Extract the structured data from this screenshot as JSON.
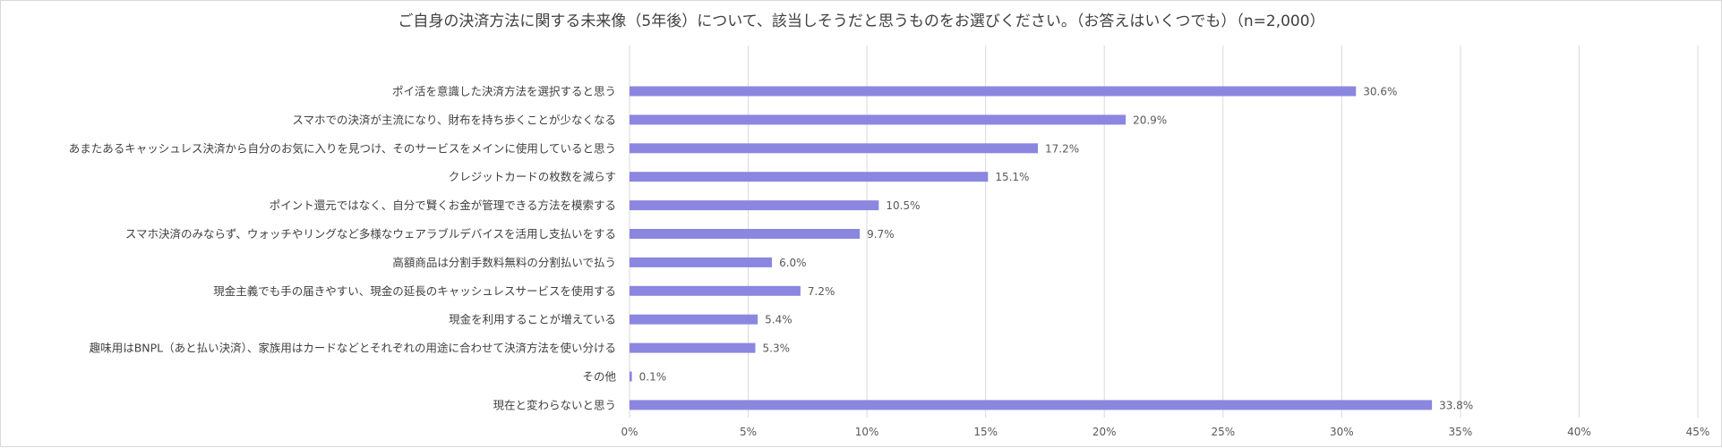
{
  "chart_data": {
    "type": "bar",
    "orientation": "horizontal",
    "title": "ご自身の決済方法に関する未来像（5年後）について、該当しそうだと思うものをお選びください。（お答えはいくつでも）（n=2,000）",
    "categories": [
      "ポイ活を意識した決済方法を選択すると思う",
      "スマホでの決済が主流になり、財布を持ち歩くことが少なくなる",
      "あまたあるキャッシュレス決済から自分のお気に入りを見つけ、そのサービスをメインに使用していると思う",
      "クレジットカードの枚数を減らす",
      "ポイント還元ではなく、自分で賢くお金が管理できる方法を模索する",
      "スマホ決済のみならず、ウォッチやリングなど多様なウェアラブルデバイスを活用し支払いをする",
      "高額商品は分割手数料無料の分割払いで払う",
      "現金主義でも手の届きやすい、現金の延長のキャッシュレスサービスを使用する",
      "現金を利用することが増えている",
      "趣味用はBNPL（あと払い決済）、家族用はカードなどとそれぞれの用途に合わせて決済方法を使い分ける",
      "その他",
      "現在と変わらないと思う"
    ],
    "values": [
      30.6,
      20.9,
      17.2,
      15.1,
      10.5,
      9.7,
      6.0,
      7.2,
      5.4,
      5.3,
      0.1,
      33.8
    ],
    "value_labels": [
      "30.6%",
      "20.9%",
      "17.2%",
      "15.1%",
      "10.5%",
      "9.7%",
      "6.0%",
      "7.2%",
      "5.4%",
      "5.3%",
      "0.1%",
      "33.8%"
    ],
    "xlim": [
      0,
      45
    ],
    "x_ticks": [
      0,
      5,
      10,
      15,
      20,
      25,
      30,
      35,
      40,
      45
    ],
    "x_tick_labels": [
      "0%",
      "5%",
      "10%",
      "15%",
      "20%",
      "25%",
      "30%",
      "35%",
      "40%",
      "45%"
    ],
    "grid": true,
    "legend": "none",
    "bar_color": "#8b86e0",
    "xlabel": "",
    "ylabel": ""
  }
}
